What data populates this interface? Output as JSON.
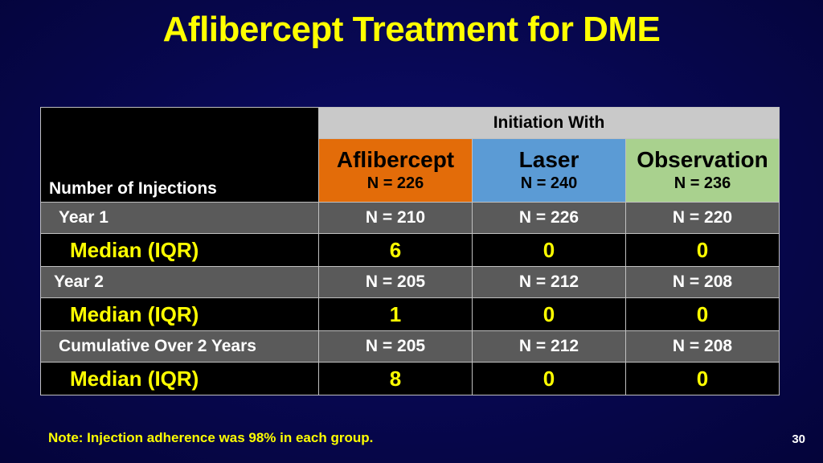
{
  "title": "Aflibercept Treatment for DME",
  "table": {
    "corner_label": "Number of Injections",
    "group_header": "Initiation With",
    "arms": [
      {
        "name": "Aflibercept",
        "n": "N = 226",
        "color": "#e36c09"
      },
      {
        "name": "Laser",
        "n": "N = 240",
        "color": "#5b9bd5"
      },
      {
        "name": "Observation",
        "n": "N = 236",
        "color": "#a9d18e"
      }
    ],
    "rows": [
      {
        "label": "Year 1",
        "values": [
          "N = 210",
          "N = 226",
          "N = 220"
        ]
      },
      {
        "label": "Median (IQR)",
        "values": [
          "6",
          "0",
          "0"
        ]
      },
      {
        "label": "Year 2",
        "values": [
          "N = 205",
          "N = 212",
          "N = 208"
        ]
      },
      {
        "label": "Median (IQR)",
        "values": [
          "1",
          "0",
          "0"
        ]
      },
      {
        "label": "Cumulative Over 2 Years",
        "values": [
          "N = 205",
          "N = 212",
          "N = 208"
        ]
      },
      {
        "label": "Median (IQR)",
        "values": [
          "8",
          "0",
          "0"
        ]
      }
    ]
  },
  "note": "Note: Injection adherence was 98% in each group.",
  "slide_number": "30",
  "colors": {
    "title": "#ffff00",
    "background": "#07074e"
  }
}
